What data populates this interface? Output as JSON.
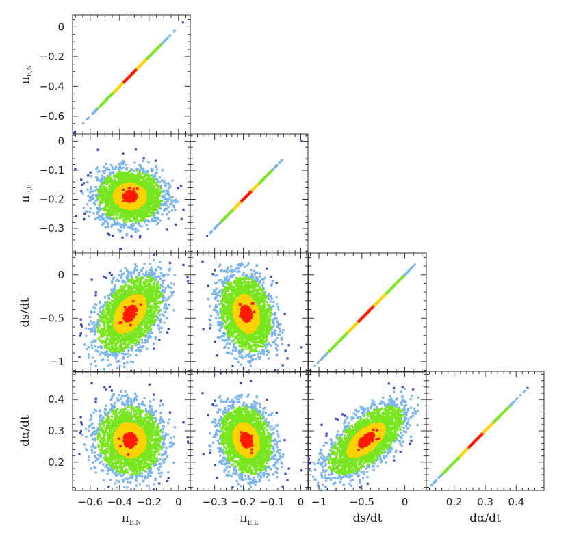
{
  "chart_data": {
    "type": "scatter",
    "layout": "corner-plot",
    "parameters": [
      {
        "id": "piEN",
        "symbol": "π",
        "subscript": "E,N",
        "range": [
          -0.72,
          0.08
        ],
        "ticks": [
          -0.6,
          -0.4,
          -0.2,
          0
        ],
        "tick_labels": [
          "−0.6",
          "−0.4",
          "−0.2",
          "0"
        ],
        "mean": -0.33,
        "sd": 0.11
      },
      {
        "id": "piEE",
        "symbol": "π",
        "subscript": "E,E",
        "range": [
          -0.385,
          0.025
        ],
        "ticks": [
          -0.3,
          -0.2,
          -0.1,
          0
        ],
        "tick_labels": [
          "−0.3",
          "−0.2",
          "−0.1",
          "0"
        ],
        "mean": -0.19,
        "sd": 0.045
      },
      {
        "id": "dsdt",
        "symbol": "ds/dt",
        "subscript": "",
        "range": [
          -1.12,
          0.25
        ],
        "ticks": [
          -1,
          -0.5,
          0
        ],
        "tick_labels": [
          "−1",
          "−0.5",
          "0"
        ],
        "mean": -0.45,
        "sd": 0.22
      },
      {
        "id": "dadt",
        "symbol": "dα/dt",
        "subscript": "",
        "range": [
          0.11,
          0.49
        ],
        "ticks": [
          0.2,
          0.3,
          0.4
        ],
        "tick_labels": [
          "0.2",
          "0.3",
          "0.4"
        ],
        "mean": 0.27,
        "sd": 0.055
      }
    ],
    "correlations": {
      "piEE|piEN": 0.0,
      "dsdt|piEN": 0.45,
      "dsdt|piEE": -0.2,
      "dadt|piEN": -0.05,
      "dadt|piEE": -0.2,
      "dadt|dsdt": 0.65
    },
    "color_levels": [
      {
        "level": "best",
        "color": "#ff1a00"
      },
      {
        "level": "1sigma",
        "color": "#ffd200"
      },
      {
        "level": "2sigma",
        "color": "#78e61e"
      },
      {
        "level": "3sigma",
        "color": "#78b4f0"
      },
      {
        "level": "4sigma",
        "color": "#3246c8"
      }
    ],
    "grid": false,
    "legend": "none"
  }
}
